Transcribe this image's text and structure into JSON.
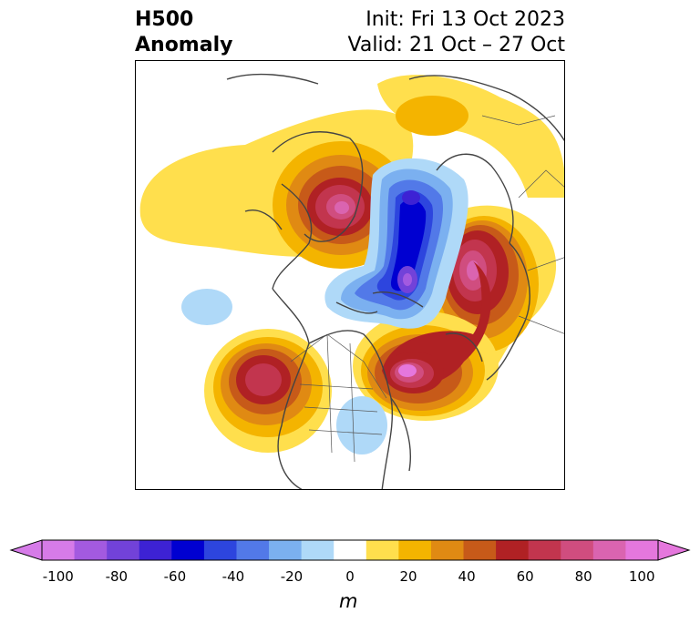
{
  "title": {
    "left_line1": "H500",
    "left_line2": "Anomaly",
    "init": "Init: Fri 13 Oct 2023",
    "valid": "Valid: 21 Oct – 27 Oct"
  },
  "colorbar": {
    "unit": "m",
    "ticks": [
      "-100",
      "-80",
      "-60",
      "-40",
      "-20",
      "0",
      "20",
      "40",
      "60",
      "80",
      "100"
    ],
    "colors": [
      "#d67be8",
      "#a35ae0",
      "#7242d9",
      "#3d22d4",
      "#0000d1",
      "#2d45de",
      "#5279e8",
      "#7bb0f0",
      "#afd9f8",
      "#ffffff",
      "#ffdf4d",
      "#f4b400",
      "#e08a13",
      "#c75a19",
      "#b02124",
      "#c2354e",
      "#d04d7f",
      "#da64b0",
      "#e577dd"
    ]
  },
  "map": {
    "projection": "north-polar-stereographic",
    "features": [
      "coastlines",
      "country-borders",
      "us-state-borders"
    ],
    "anomalies": [
      {
        "region": "Alaska / Bering",
        "sign": "positive",
        "peak_m": 80
      },
      {
        "region": "Arctic Ocean / Canadian Archipelago",
        "sign": "negative",
        "peak_m": -80
      },
      {
        "region": "Eastern Canada / Hudson Bay",
        "sign": "negative",
        "peak_m": -40
      },
      {
        "region": "Northern Europe / Scandinavia",
        "sign": "positive",
        "peak_m": 80
      },
      {
        "region": "Western Russia",
        "sign": "positive",
        "peak_m": 80
      },
      {
        "region": "Western North America / Pacific",
        "sign": "positive",
        "peak_m": 60
      },
      {
        "region": "Central United States",
        "sign": "negative",
        "peak_m": -20
      }
    ]
  }
}
